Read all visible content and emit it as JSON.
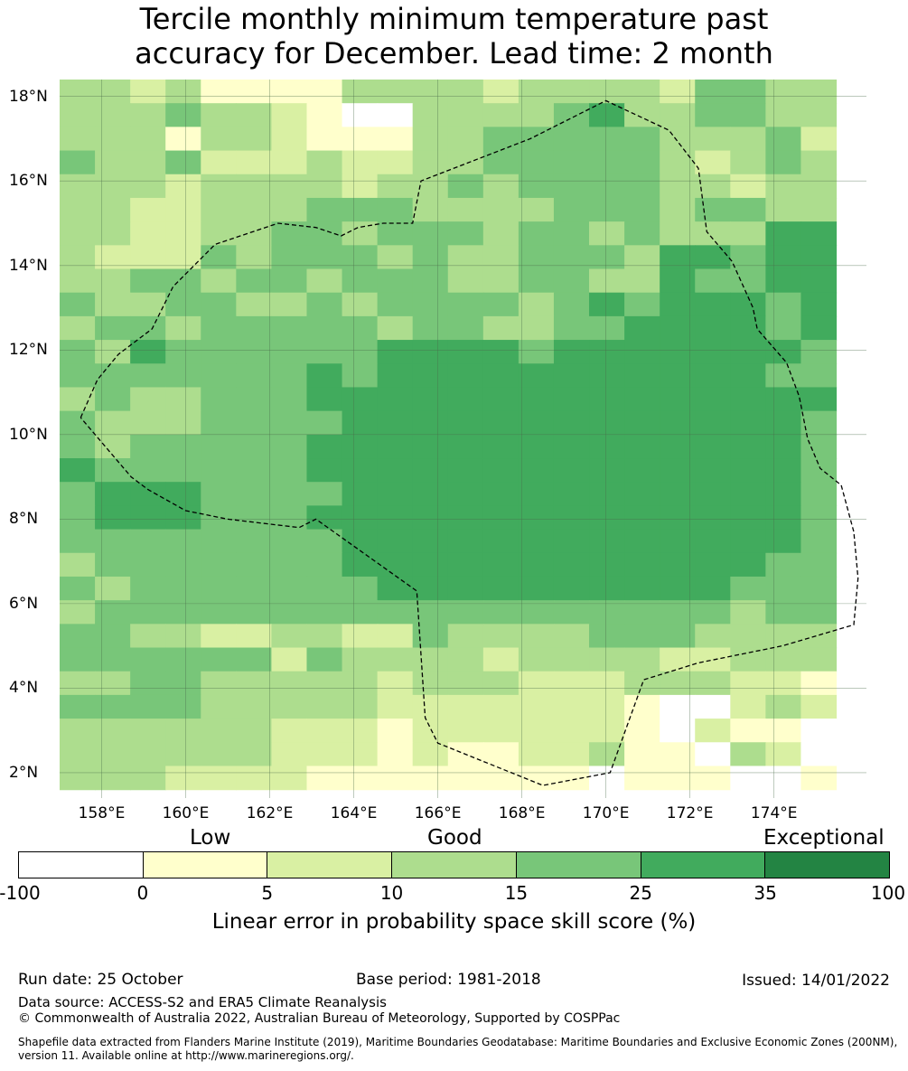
{
  "title": {
    "line1": "Tercile monthly minimum temperature past",
    "line2": "accuracy for December. Lead time: 2 month"
  },
  "map": {
    "lon_min": 157.0,
    "lon_max": 176.2,
    "lat_min": 1.4,
    "lat_max": 18.4,
    "lon_ticks": [
      158,
      160,
      162,
      164,
      166,
      168,
      170,
      172,
      174
    ],
    "lon_tick_labels": [
      "158°E",
      "160°E",
      "162°E",
      "164°E",
      "166°E",
      "168°E",
      "170°E",
      "172°E",
      "174°E"
    ],
    "lat_ticks": [
      18,
      16,
      14,
      12,
      10,
      8,
      6,
      4,
      2
    ],
    "lat_tick_labels": [
      "18°N",
      "16°N",
      "14°N",
      "12°N",
      "10°N",
      "8°N",
      "6°N",
      "4°N",
      "2°N"
    ],
    "grid_dlon": 0.84,
    "grid_dlat": 0.56,
    "grid_rows": [
      "3323111133332333324433",
      "3334332100333345334433",
      "3331332111334444433342",
      "4334222322334444432343",
      "3332333323343444433233",
      "3322333444333344434433",
      "3322334434443443433355",
      "3222434443433444355455",
      "3344344344433443354455",
      "4334433434444345455545",
      "3443444443443344555545",
      "4354444445555455555554",
      "4444444545555555555544",
      "3433444555555555555555",
      "4333444455555555555554",
      "4344444555555555555554",
      "5444444555555555555554",
      "4555444455555555555554",
      "4555444555555555555554",
      "4444444455555555555554",
      "3444444455555555555544",
      "4344444445555555555444",
      "3444444444444444444344",
      "4433223322433334443333",
      "4444442433332333322333",
      "3344333332333222333221",
      "4444333332222222100232",
      "3333332221222222102110",
      "3333332221211223110320",
      "3332222111111110111001"
    ],
    "eez_boundary": [
      [
        157.5,
        10.4
      ],
      [
        157.9,
        11.3
      ],
      [
        158.4,
        11.9
      ],
      [
        159.2,
        12.5
      ],
      [
        159.7,
        13.5
      ],
      [
        160.7,
        14.5
      ],
      [
        162.2,
        15.0
      ],
      [
        163.1,
        14.9
      ],
      [
        163.7,
        14.7
      ],
      [
        164.1,
        14.9
      ],
      [
        164.7,
        15.0
      ],
      [
        165.4,
        15.0
      ],
      [
        165.6,
        16.0
      ],
      [
        168.2,
        17.0
      ],
      [
        170.0,
        17.9
      ],
      [
        171.5,
        17.2
      ],
      [
        172.2,
        16.3
      ],
      [
        172.4,
        14.8
      ],
      [
        173.0,
        14.1
      ],
      [
        173.5,
        13.0
      ],
      [
        173.6,
        12.5
      ],
      [
        174.3,
        11.7
      ],
      [
        174.6,
        10.9
      ],
      [
        174.8,
        9.9
      ],
      [
        175.1,
        9.2
      ],
      [
        175.6,
        8.8
      ],
      [
        175.9,
        7.7
      ],
      [
        176.0,
        6.6
      ],
      [
        175.9,
        5.5
      ],
      [
        174.2,
        5.0
      ],
      [
        172.2,
        4.6
      ],
      [
        170.9,
        4.2
      ],
      [
        170.1,
        2.0
      ],
      [
        168.5,
        1.7
      ],
      [
        166.0,
        2.7
      ],
      [
        165.7,
        3.3
      ],
      [
        165.5,
        6.3
      ],
      [
        163.1,
        8.0
      ],
      [
        162.7,
        7.8
      ],
      [
        161.0,
        8.0
      ],
      [
        160.0,
        8.2
      ],
      [
        159.1,
        8.7
      ],
      [
        158.7,
        9.0
      ],
      [
        157.5,
        10.4
      ]
    ]
  },
  "colorbar": {
    "colors": [
      "#ffffff",
      "#ffffcc",
      "#d9f0a3",
      "#addd8e",
      "#78c679",
      "#41ab5d",
      "#238443"
    ],
    "tick_labels": [
      "-100",
      "0",
      "5",
      "10",
      "15",
      "25",
      "35",
      "100"
    ],
    "categories": [
      "Low",
      "Good",
      "Exceptional"
    ],
    "label": "Linear error in probability space skill score (%)"
  },
  "footer": {
    "run_date": "Run date: 25 October",
    "base_period": "Base period: 1981-2018",
    "issued": "Issued: 14/01/2022",
    "data_source": "Data source: ACCESS-S2 and ERA5 Climate Reanalysis",
    "copyright": "© Commonwealth of Australia 2022, Australian Bureau of Meteorology, Supported by COSPPac",
    "shapefile": "Shapefile data extracted from Flanders Marine Institute (2019), Maritime Boundaries Geodatabase: Maritime Boundaries and Exclusive Economic Zones (200NM), version 11. Available online at http://www.marineregions.org/."
  }
}
